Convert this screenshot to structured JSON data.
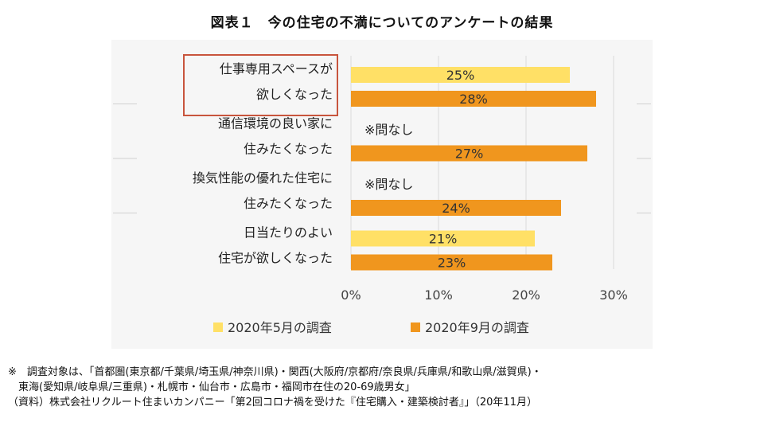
{
  "title": "図表１　今の住宅の不満についてのアンケートの結果",
  "chart_data": {
    "type": "bar",
    "orientation": "horizontal",
    "categories": [
      [
        "仕事専用スペースが",
        "欲しくなった"
      ],
      [
        "通信環境の良い家に",
        "住みたくなった"
      ],
      [
        "換気性能の優れた住宅に",
        "住みたくなった"
      ],
      [
        "日当たりのよい",
        "住宅が欲しくなった"
      ]
    ],
    "highlighted_category": 0,
    "series": [
      {
        "name": "2020年5月の調査",
        "color": "#FFE066",
        "values": [
          25,
          null,
          null,
          21
        ],
        "labels": [
          "25%",
          null,
          null,
          "21%"
        ]
      },
      {
        "name": "2020年9月の調査",
        "color": "#F0961E",
        "values": [
          28,
          27,
          24,
          23
        ],
        "labels": [
          "28%",
          "27%",
          "24%",
          "23%"
        ]
      }
    ],
    "missing_note": "※問なし",
    "xlim": [
      0,
      30
    ],
    "xticks": [
      0,
      10,
      20,
      30
    ],
    "xtick_labels": [
      "0%",
      "10%",
      "20%",
      "30%"
    ],
    "legend_position": "bottom"
  },
  "footnotes": [
    "※　調査対象は、「首都圏(東京都/千葉県/埼玉県/神奈川県)・関西(大阪府/京都府/奈良県/兵庫県/和歌山県/滋賀県)・",
    "　東海(愛知県/岐阜県/三重県)・札幌市・仙台市・広島市・福岡市在住の20-69歳男女」",
    "（資料）株式会社リクルート住まいカンパニー「第2回コロナ禍を受けた『住宅購入・建築検討者』」（20年11月）"
  ]
}
